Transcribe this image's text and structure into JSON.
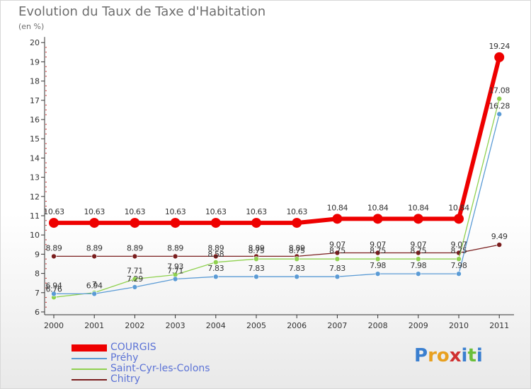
{
  "header": {
    "title": "Evolution du Taux de Taxe d'Habitation",
    "subtitle": "(en %)"
  },
  "logo": {
    "text": "Proxiti",
    "letters": [
      {
        "ch": "P",
        "color": "#3a7fd0"
      },
      {
        "ch": "r",
        "color": "#e8a020"
      },
      {
        "ch": "o",
        "color": "#e8a020"
      },
      {
        "ch": "x",
        "color": "#d03030"
      },
      {
        "ch": "i",
        "color": "#3a7fd0"
      },
      {
        "ch": "t",
        "color": "#6bbf3a"
      },
      {
        "ch": "i",
        "color": "#3a7fd0"
      }
    ]
  },
  "chart_data": {
    "type": "line",
    "title": "Evolution du Taux de Taxe d'Habitation",
    "subtitle": "(en %)",
    "xlabel": "",
    "ylabel": "",
    "x": [
      "2000",
      "2001",
      "2002",
      "2003",
      "2004",
      "2005",
      "2006",
      "2007",
      "2008",
      "2009",
      "2010",
      "2011"
    ],
    "ylim": [
      6,
      20
    ],
    "yticks": [
      6,
      7,
      8,
      9,
      10,
      11,
      12,
      13,
      14,
      15,
      16,
      17,
      18,
      19,
      20
    ],
    "grid": false,
    "legend_position": "bottom-left",
    "series": [
      {
        "name": "COURGIS",
        "color": "#ee0000",
        "values": [
          10.63,
          10.63,
          10.63,
          10.63,
          10.63,
          10.63,
          10.63,
          10.84,
          10.84,
          10.84,
          10.84,
          19.24
        ],
        "labels": [
          "10.63",
          "10.63",
          "10.63",
          "10.63",
          "10.63",
          "10.63",
          "10.63",
          "10.84",
          "10.84",
          "10.84",
          "10.84",
          "19.24"
        ]
      },
      {
        "name": "Préhy",
        "color": "#5b9bd5",
        "values": [
          6.94,
          6.94,
          7.29,
          7.71,
          7.83,
          7.83,
          7.83,
          7.83,
          7.98,
          7.98,
          7.98,
          16.28
        ],
        "labels": [
          "6.94",
          "6.94",
          "7.29",
          "7.71",
          "7.83",
          "7.83",
          "7.83",
          "7.83",
          "7.98",
          "7.98",
          "7.98",
          "16.28"
        ]
      },
      {
        "name": "Saint-Cyr-les-Colons",
        "color": "#8fd14f",
        "values": [
          6.76,
          7,
          7.71,
          7.93,
          8.58,
          8.75,
          8.75,
          8.75,
          8.75,
          8.75,
          8.75,
          17.08
        ],
        "labels": [
          "6.76",
          "7",
          "7.71",
          "7.93",
          "8.58",
          "8.75",
          "8.75",
          "8.75",
          "8.75",
          "8.75",
          "8.75",
          "17.08"
        ]
      },
      {
        "name": "Chitry",
        "color": "#7a1e1e",
        "values": [
          8.89,
          8.89,
          8.89,
          8.89,
          8.89,
          8.89,
          8.89,
          9.07,
          9.07,
          9.07,
          9.07,
          9.49
        ],
        "labels": [
          "8.89",
          "8.89",
          "8.89",
          "8.89",
          "8.89",
          "8.89",
          "8.89",
          "9.07",
          "9.07",
          "9.07",
          "9.07",
          "9.49"
        ]
      }
    ]
  }
}
